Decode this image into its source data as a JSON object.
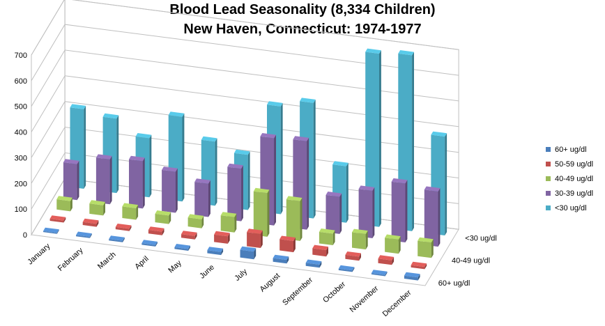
{
  "chart_data": {
    "type": "bar",
    "title": "Blood Lead Seasonality (8,334 Children)",
    "subtitle": "New Haven, Connecticut: 1974-1977",
    "categories": [
      "January",
      "February",
      "March",
      "April",
      "May",
      "June",
      "July",
      "August",
      "September",
      "October",
      "November",
      "December"
    ],
    "depth_labels": [
      "<30 ug/dl",
      "40-49 ug/dl",
      "60+ ug/dl"
    ],
    "series": [
      {
        "name": "60+ ug/dl",
        "color": "#4a7ebb",
        "values": [
          4,
          5,
          6,
          6,
          7,
          12,
          30,
          14,
          12,
          6,
          5,
          12
        ]
      },
      {
        "name": "50-59 ug/dl",
        "color": "#c0504d",
        "values": [
          8,
          12,
          9,
          14,
          14,
          29,
          55,
          44,
          25,
          16,
          18,
          9
        ]
      },
      {
        "name": "40-49 ug/dl",
        "color": "#9bbb59",
        "values": [
          40,
          40,
          45,
          33,
          35,
          60,
          170,
          155,
          45,
          60,
          55,
          60
        ]
      },
      {
        "name": "30-39 ug/dl",
        "color": "#8064a2",
        "values": [
          140,
          175,
          185,
          160,
          130,
          205,
          340,
          345,
          145,
          185,
          230,
          215
        ]
      },
      {
        "name": "<30 ug/dl",
        "color": "#4bacc6",
        "values": [
          310,
          290,
          230,
          330,
          250,
          215,
          420,
          450,
          220,
          675,
          685,
          385
        ]
      }
    ],
    "ylim": [
      0,
      700
    ],
    "yticks": [
      0,
      100,
      200,
      300,
      400,
      500,
      600,
      700
    ],
    "grid": true,
    "legend": "right"
  }
}
